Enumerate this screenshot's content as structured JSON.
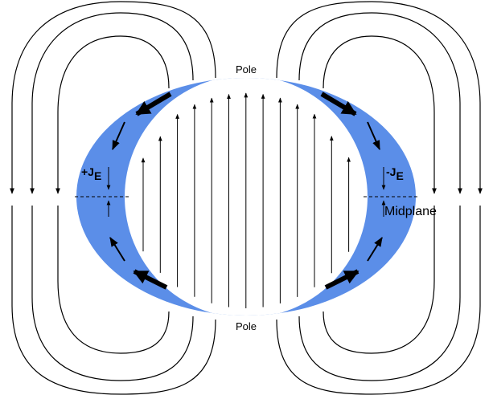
{
  "labels": {
    "pole_top": "Pole",
    "pole_bottom": "Pole",
    "left_current": {
      "main": "+J",
      "sub": "E"
    },
    "right_current": {
      "main": "-J",
      "sub": "E"
    },
    "midplane": "Midplane"
  }
}
